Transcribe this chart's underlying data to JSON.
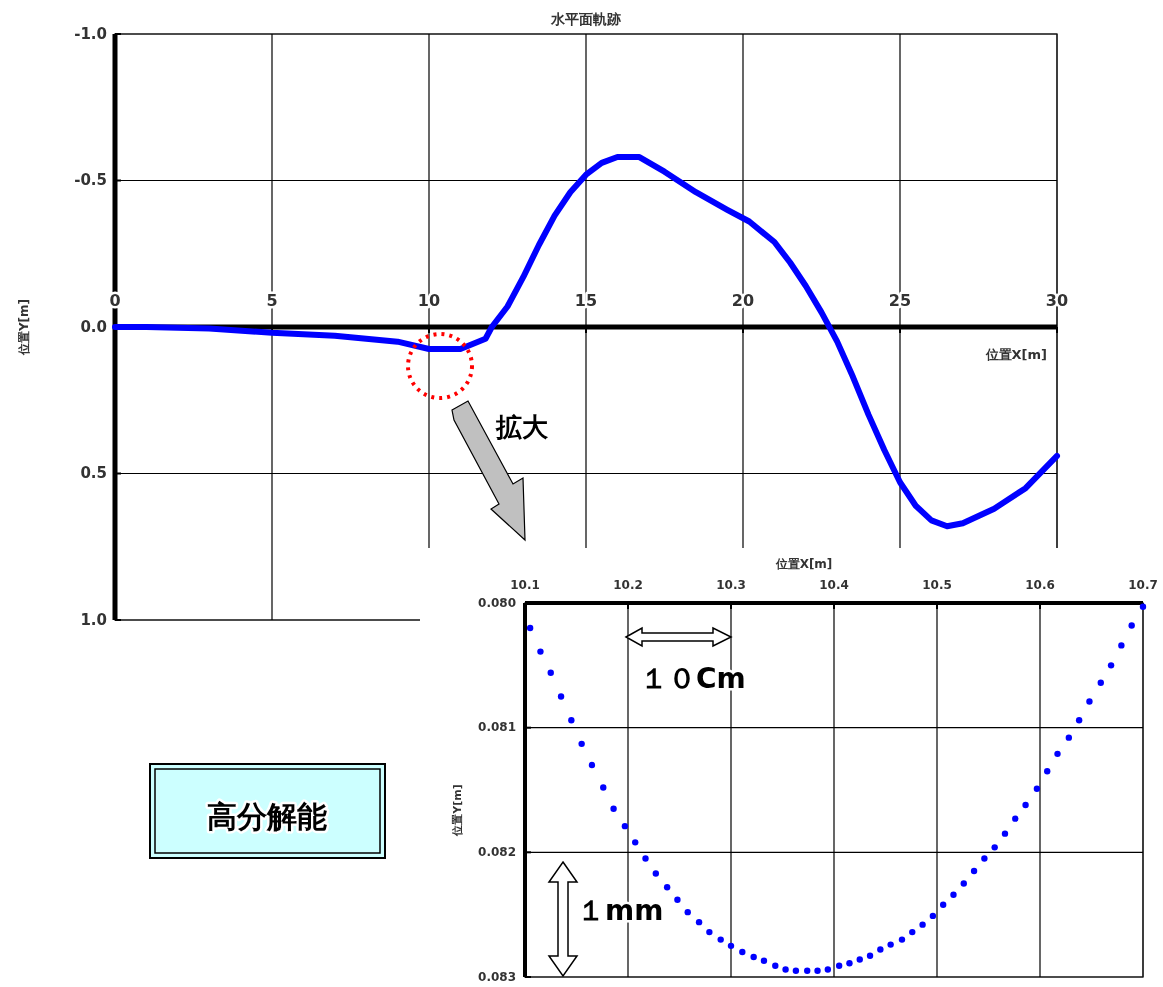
{
  "chart_data": [
    {
      "type": "line",
      "title": "水平面軌跡",
      "xlabel": "位置X[m]",
      "ylabel": "位置Y[m]",
      "xlim": [
        0,
        30
      ],
      "ylim": [
        1.0,
        -1.0
      ],
      "xticks": [
        0,
        5,
        10,
        15,
        20,
        25,
        30
      ],
      "yticks": [
        {
          "value": -1.0,
          "label": "-1.0"
        },
        {
          "value": -0.5,
          "label": "-0.5"
        },
        {
          "value": 0,
          "label": "0.0"
        },
        {
          "value": 0.5,
          "label": "0.5"
        },
        {
          "value": 1.0,
          "label": "1.0"
        }
      ],
      "grid": true,
      "x": [
        0,
        1,
        3,
        5,
        7,
        9,
        10,
        11,
        11.8,
        12,
        12.5,
        13,
        13.5,
        14,
        14.5,
        15,
        15.5,
        16,
        16.7,
        17.5,
        18.5,
        19.5,
        20.2,
        21,
        21.5,
        22,
        22.5,
        23,
        23.5,
        24,
        24.5,
        25,
        25.5,
        26,
        26.5,
        27,
        28,
        29,
        30
      ],
      "series": [
        {
          "color": "#0000ff",
          "values": [
            0,
            0,
            0.005,
            0.02,
            0.03,
            0.05,
            0.075,
            0.075,
            0.04,
            0.0,
            -0.07,
            -0.17,
            -0.28,
            -0.38,
            -0.46,
            -0.52,
            -0.56,
            -0.58,
            -0.58,
            -0.53,
            -0.46,
            -0.4,
            -0.36,
            -0.29,
            -0.22,
            -0.14,
            -0.05,
            0.05,
            0.17,
            0.3,
            0.42,
            0.53,
            0.61,
            0.66,
            0.68,
            0.67,
            0.62,
            0.55,
            0.44
          ]
        }
      ],
      "annotations": [
        "拡大",
        "高分解能"
      ]
    },
    {
      "type": "scatter",
      "xlabel": "位置X[m]",
      "ylabel": "位置Y[m]",
      "xlim": [
        10.1,
        10.7
      ],
      "ylim": [
        0.083,
        0.08
      ],
      "xticks": [
        10.1,
        10.2,
        10.3,
        10.4,
        10.5,
        10.6,
        10.7
      ],
      "yticks": [
        {
          "value": 0.08,
          "label": "0.080"
        },
        {
          "value": 0.081,
          "label": "0.081"
        },
        {
          "value": 0.082,
          "label": "0.082"
        },
        {
          "value": 0.083,
          "label": "0.083"
        }
      ],
      "grid": true,
      "marker": "circle",
      "x": [
        10.105,
        10.115,
        10.125,
        10.135,
        10.145,
        10.155,
        10.165,
        10.176,
        10.186,
        10.197,
        10.207,
        10.217,
        10.227,
        10.238,
        10.248,
        10.258,
        10.269,
        10.279,
        10.29,
        10.3,
        10.311,
        10.322,
        10.332,
        10.343,
        10.353,
        10.363,
        10.374,
        10.384,
        10.394,
        10.405,
        10.415,
        10.425,
        10.435,
        10.445,
        10.455,
        10.466,
        10.476,
        10.486,
        10.496,
        10.506,
        10.516,
        10.526,
        10.536,
        10.546,
        10.556,
        10.566,
        10.576,
        10.586,
        10.597,
        10.607,
        10.617,
        10.628,
        10.638,
        10.648,
        10.659,
        10.669,
        10.679,
        10.689,
        10.7
      ],
      "series": [
        {
          "color": "#0000ff",
          "values": [
            0.0802,
            0.08039,
            0.08056,
            0.08075,
            0.08094,
            0.08113,
            0.0813,
            0.08148,
            0.08165,
            0.08179,
            0.08192,
            0.08205,
            0.08217,
            0.08228,
            0.08238,
            0.08248,
            0.08256,
            0.08264,
            0.0827,
            0.08275,
            0.0828,
            0.08284,
            0.08287,
            0.08291,
            0.08294,
            0.08295,
            0.08295,
            0.08295,
            0.08294,
            0.08291,
            0.08289,
            0.08286,
            0.08283,
            0.08278,
            0.08274,
            0.0827,
            0.08264,
            0.08258,
            0.08251,
            0.08242,
            0.08234,
            0.08225,
            0.08215,
            0.08205,
            0.08196,
            0.08185,
            0.08173,
            0.08162,
            0.08149,
            0.08135,
            0.08121,
            0.08108,
            0.08094,
            0.08079,
            0.08064,
            0.0805,
            0.08034,
            0.08018,
            0.08003
          ]
        }
      ],
      "annotations": [
        "１０Cm",
        "１mm"
      ]
    }
  ]
}
